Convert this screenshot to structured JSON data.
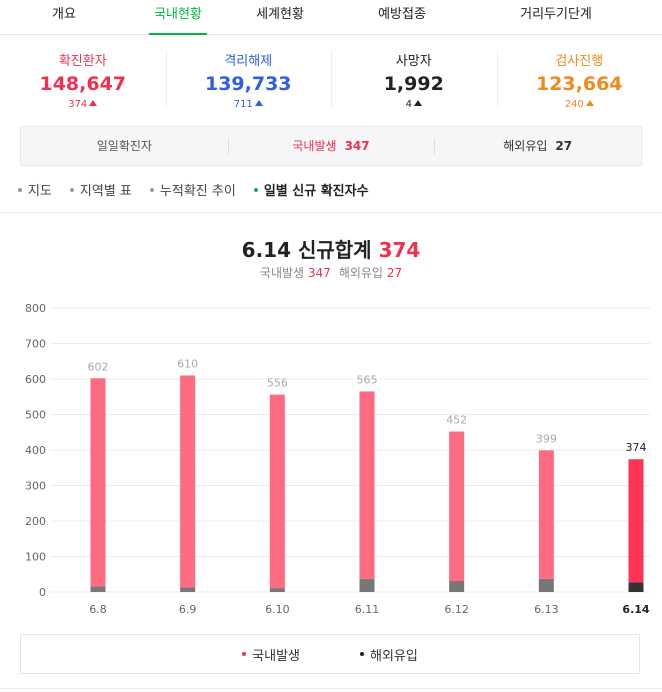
{
  "tabs": [
    {
      "label": "개요",
      "active": false
    },
    {
      "label": "국내현황",
      "active": true
    },
    {
      "label": "세계현황",
      "active": false
    },
    {
      "label": "예방접종",
      "active": false
    },
    {
      "label": "거리두기단계",
      "active": false
    }
  ],
  "stats": [
    {
      "label": "확진환자",
      "value": "148,647",
      "change": "374",
      "color": "#f0304f"
    },
    {
      "label": "격리해제",
      "value": "139,733",
      "change": "711",
      "color": "#2e5fe0"
    },
    {
      "label": "사망자",
      "value": "1,992",
      "change": "4",
      "color": "#222222"
    },
    {
      "label": "검사진행",
      "value": "123,664",
      "change": "240",
      "color": "#f08a1c"
    }
  ],
  "daily": {
    "total_label": "일일확진자",
    "domestic_label": "국내발생",
    "domestic_value": "347",
    "overseas_label": "해외유입",
    "overseas_value": "27"
  },
  "subnav": [
    {
      "label": "지도",
      "active": false
    },
    {
      "label": "지역별 표",
      "active": false
    },
    {
      "label": "누적확진 추이",
      "active": false
    },
    {
      "label": "일별 신규 확진자수",
      "active": true
    }
  ],
  "chart_header": {
    "title": "6.14 신규합계",
    "total": "374",
    "domestic_label": "국내발생",
    "domestic_value": "347",
    "overseas_label": "해외유입",
    "overseas_value": "27"
  },
  "chart_data": {
    "type": "bar",
    "categories": [
      "6.8",
      "6.9",
      "6.10",
      "6.11",
      "6.12",
      "6.13",
      "6.14"
    ],
    "series": [
      {
        "name": "국내발생",
        "values": [
          586,
          597,
          545,
          528,
          421,
          362,
          347
        ]
      },
      {
        "name": "해외유입",
        "values": [
          16,
          13,
          11,
          37,
          31,
          37,
          27
        ]
      }
    ],
    "totals": [
      602,
      610,
      556,
      565,
      452,
      399,
      374
    ],
    "ylim": [
      0,
      800
    ],
    "yticks": [
      0,
      100,
      200,
      300,
      400,
      500,
      600,
      700,
      800
    ],
    "highlight_index": 6,
    "grid": true,
    "colors": {
      "domestic": "#ff6b81",
      "overseas": "#777777",
      "domestic_highlight": "#ff3355",
      "overseas_highlight": "#333333",
      "label": "#aaaaaa",
      "label_highlight": "#222222"
    }
  },
  "legend": [
    {
      "label": "국내발생",
      "color": "#f0304f"
    },
    {
      "label": "해외유입",
      "color": "#222222"
    }
  ]
}
